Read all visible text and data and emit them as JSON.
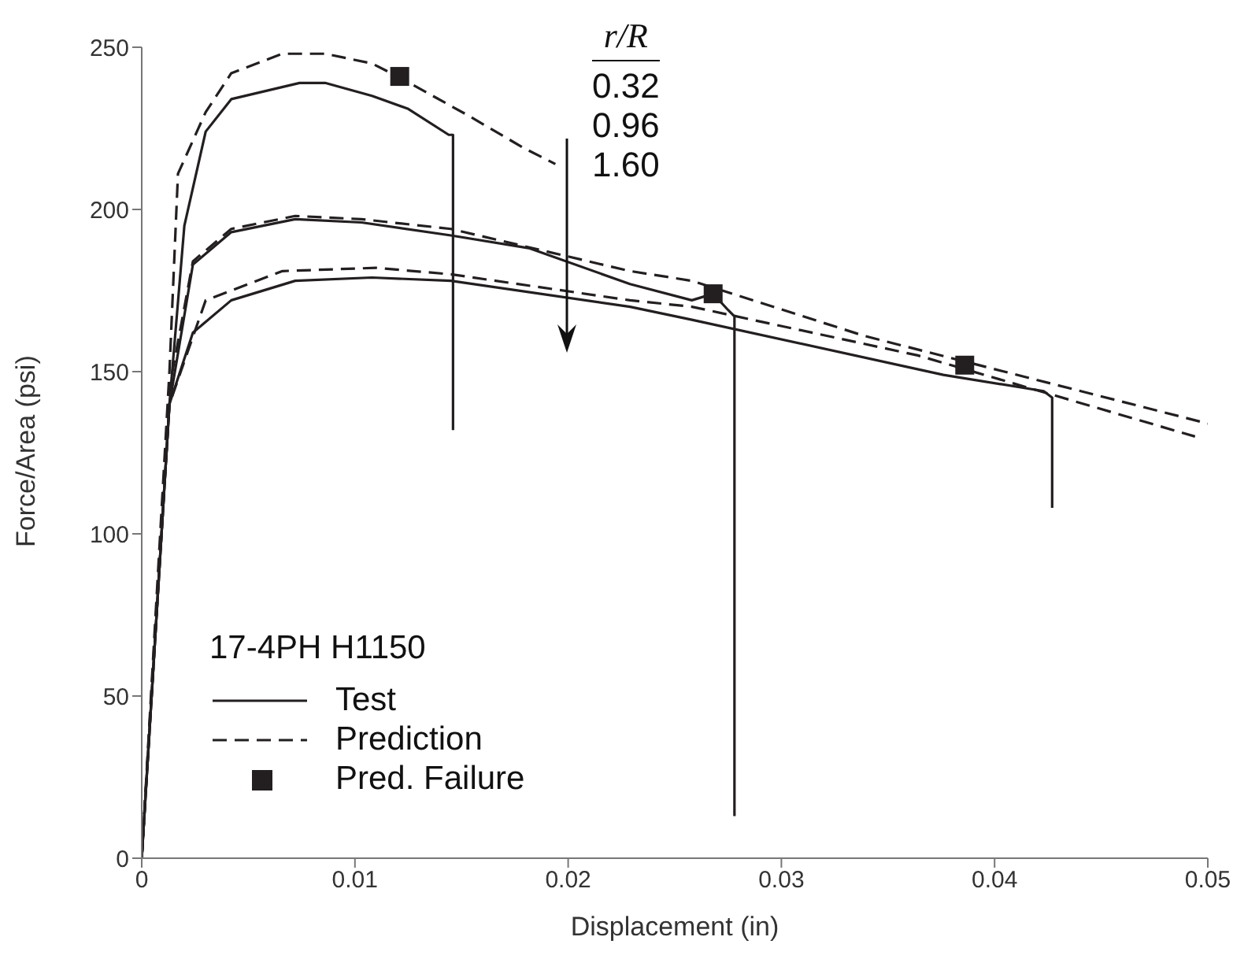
{
  "chart_data": {
    "type": "line",
    "xlabel": "Displacement (in)",
    "ylabel": "Force/Area (psi)",
    "xlim": [
      0,
      0.05
    ],
    "xticks": [
      0,
      0.01,
      0.02,
      0.03,
      0.04,
      0.05
    ],
    "ylim": [
      0,
      250
    ],
    "yticks": [
      0,
      50,
      100,
      150,
      200,
      250
    ],
    "legend": "bottom left",
    "legend_title": "17-4PH H1150",
    "marker": "none",
    "annotations": [
      "r/R",
      "0.32",
      "0.96",
      "1.60"
    ],
    "series": [
      {
        "name": "Test",
        "color": "#231f20",
        "line_style": "solid",
        "x": [
          0,
          0.0013,
          0.002,
          0.003,
          0.0042,
          0.0074,
          0.0086,
          0.0108,
          0.0125,
          0.0144,
          0.0146,
          0.0146
        ],
        "values": [
          0,
          140,
          195,
          224,
          234,
          239,
          239,
          235,
          231,
          223,
          223,
          132
        ]
      },
      {
        "color": "#231f20",
        "line_style": "solid",
        "x": [
          0,
          0.0013,
          0.0024,
          0.0042,
          0.0072,
          0.0103,
          0.0145,
          0.0182,
          0.0229,
          0.0258,
          0.0268,
          0.0275,
          0.0278,
          0.0278
        ],
        "values": [
          0,
          140,
          183,
          193,
          197,
          196,
          192,
          188,
          177,
          172,
          174,
          169,
          167,
          13
        ]
      },
      {
        "color": "#231f20",
        "line_style": "solid",
        "x": [
          0,
          0.0013,
          0.0024,
          0.0042,
          0.0072,
          0.0108,
          0.0145,
          0.0229,
          0.0258,
          0.0376,
          0.0423,
          0.0427,
          0.0427
        ],
        "values": [
          0,
          140,
          162,
          172,
          178,
          179,
          178,
          170,
          166,
          149,
          144,
          142,
          108
        ]
      },
      {
        "name": "Prediction",
        "color": "#231f20",
        "line_style": "dashed",
        "x": [
          0,
          0.0013,
          0.0017,
          0.003,
          0.0042,
          0.0066,
          0.0086,
          0.0108,
          0.012,
          0.0153,
          0.0179,
          0.0194
        ],
        "values": [
          0,
          150,
          211,
          230,
          242,
          248,
          248,
          245,
          241,
          229,
          219,
          214
        ]
      },
      {
        "color": "#231f20",
        "line_style": "dashed",
        "x": [
          0,
          0.0013,
          0.0024,
          0.0042,
          0.0072,
          0.0103,
          0.0145,
          0.0229,
          0.0258,
          0.0339,
          0.05
        ],
        "values": [
          0,
          145,
          184,
          194,
          198,
          197,
          194,
          181,
          178,
          161,
          134
        ]
      },
      {
        "color": "#231f20",
        "line_style": "dashed",
        "x": [
          0,
          0.0013,
          0.003,
          0.0066,
          0.011,
          0.0145,
          0.0229,
          0.0258,
          0.0364,
          0.0494
        ],
        "values": [
          0,
          140,
          172,
          181,
          182,
          180,
          172,
          170,
          155,
          130
        ]
      },
      {
        "name": "Pred. Failure",
        "type": "scatter",
        "marker": "square",
        "color": "#231f20",
        "x": [
          0.0121,
          0.0268,
          0.0386
        ],
        "values": [
          241,
          174,
          152
        ]
      }
    ]
  }
}
